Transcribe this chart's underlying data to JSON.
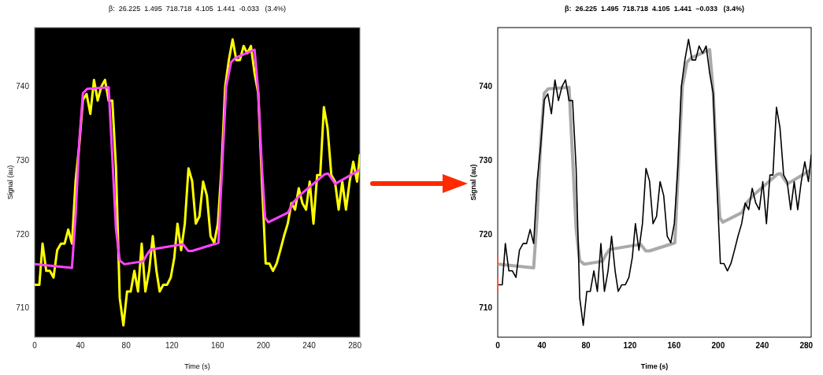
{
  "chart_data": [
    {
      "type": "line",
      "title": "β:  26.225  1.495  718.718  4.105  1.441  -0.033   (3.4%)",
      "xlabel": "Time (s)",
      "ylabel": "Signal (au)",
      "xlim": [
        0,
        284.4
      ],
      "ylim": [
        706,
        748
      ],
      "xticks": [
        0,
        40,
        80,
        120,
        160,
        200,
        240,
        280
      ],
      "yticks": [
        710,
        720,
        730,
        740
      ],
      "grid": false,
      "series": [
        {
          "color": "#ffff00",
          "x": [
            0,
            4.1,
            6.9,
            10.1,
            13.3,
            16.5,
            19.7,
            23,
            26.2,
            29.4,
            32.6,
            35.8,
            39,
            42.2,
            45.4,
            48.7,
            51.9,
            55.1,
            58.3,
            61.5,
            64.7,
            67.9,
            71.1,
            74.4,
            77.6,
            80.8,
            84,
            87.2,
            90.4,
            93.6,
            96.8,
            100.1,
            103.3,
            106.5,
            109.3,
            112.5,
            115.7,
            119,
            122.1,
            124.9,
            128.1,
            131.3,
            134.5,
            137.7,
            140.9,
            144.1,
            147.3,
            150.6,
            153.8,
            157,
            160.2,
            163.4,
            166.6,
            169.8,
            173.1,
            176.3,
            179.5,
            182.7,
            185.9,
            189.1,
            192.3,
            195.5,
            198.7,
            202,
            205.2,
            208.4,
            211.6,
            214.8,
            218,
            221.3,
            224.5,
            227.7,
            230.9,
            234.1,
            237.3,
            240.5,
            243.8,
            247,
            249.7,
            252.9,
            256.1,
            259.4,
            262.6,
            265.8,
            269,
            272.2,
            275.4,
            278.6,
            281.9,
            284.4
          ],
          "values": [
            713.1,
            713.1,
            718.7,
            715,
            715,
            714.1,
            717.8,
            718.7,
            718.7,
            720.6,
            718.7,
            727.2,
            732,
            738.2,
            739,
            736.3,
            740.9,
            738.1,
            740,
            740.9,
            738.1,
            738.1,
            729,
            711.3,
            707.6,
            712.2,
            712.2,
            715,
            712.2,
            718.7,
            712.2,
            715,
            719.7,
            715,
            712.2,
            713.1,
            713.1,
            714.1,
            716.8,
            721.4,
            717.8,
            721.4,
            728.9,
            727.2,
            721.4,
            722.4,
            727.1,
            725.2,
            719.7,
            718.8,
            721.4,
            729,
            740,
            743.6,
            746.4,
            743.6,
            743.6,
            745.5,
            744.5,
            745.5,
            741.8,
            739.1,
            727.2,
            716,
            716,
            715,
            716,
            717.8,
            719.7,
            721.4,
            724.2,
            723.3,
            726.2,
            724.2,
            723.3,
            727.1,
            721.4,
            728,
            728,
            737.2,
            734.4,
            728,
            727.1,
            723.3,
            727.1,
            723.3,
            727.1,
            729.8,
            727.1,
            730.7
          ]
        },
        {
          "color": "#ff44ff",
          "x": [
            0,
            32.6,
            35.8,
            39,
            42.2,
            45.9,
            64.7,
            67.9,
            71.1,
            74.4,
            78.5,
            95,
            98.2,
            101.4,
            129.7,
            134.3,
            137.7,
            160.7,
            163.9,
            167.5,
            171.7,
            175.6,
            192.3,
            195.5,
            198.7,
            201.5,
            204.3,
            221.5,
            226.1,
            233,
            253.6,
            256.6,
            262.8,
            284.4
          ],
          "values": [
            715.9,
            715.4,
            722.5,
            732.5,
            739.1,
            739.7,
            739.9,
            730.4,
            720.7,
            716.4,
            715.9,
            716.3,
            717.2,
            717.9,
            718.6,
            717.7,
            717.7,
            718.8,
            729,
            740,
            743.3,
            743.9,
            745,
            739.3,
            729,
            722.2,
            721.6,
            722.9,
            724.3,
            725.4,
            728.1,
            728.2,
            726.8,
            728.7
          ]
        }
      ]
    },
    {
      "type": "line",
      "title": "β:  26.225  1.495  718.718  4.105  1.441  −0.033   (3.4%)",
      "xlabel": "Time (s)",
      "ylabel": "Signal (au)",
      "xlim": [
        0,
        284.4
      ],
      "ylim": [
        706,
        748
      ],
      "xticks": [
        0,
        40,
        80,
        120,
        160,
        200,
        240,
        280
      ],
      "yticks": [
        710,
        720,
        730,
        740
      ],
      "grid": false,
      "series": [
        {
          "color": "#aaaaaa",
          "x": [
            0,
            32.6,
            35.8,
            39,
            42.2,
            45.9,
            64.7,
            67.9,
            71.1,
            74.4,
            78.5,
            95,
            98.2,
            101.4,
            129.7,
            134.3,
            137.7,
            160.7,
            163.9,
            167.5,
            171.7,
            175.6,
            192.3,
            195.5,
            198.7,
            201.5,
            204.3,
            221.5,
            226.1,
            233,
            253.6,
            256.6,
            262.8,
            284.4
          ],
          "values": [
            715.9,
            715.4,
            722.5,
            732.5,
            739.1,
            739.7,
            739.9,
            730.4,
            720.7,
            716.4,
            715.9,
            716.3,
            717.2,
            717.9,
            718.6,
            717.7,
            717.7,
            718.8,
            729,
            740,
            743.3,
            743.9,
            745,
            739.3,
            729,
            722.2,
            721.6,
            722.9,
            724.3,
            725.4,
            728.1,
            728.2,
            726.8,
            728.7
          ]
        },
        {
          "color": "#000000",
          "x": [
            0,
            4.1,
            6.9,
            10.1,
            13.3,
            16.5,
            19.7,
            23,
            26.2,
            29.4,
            32.6,
            35.8,
            39,
            42.2,
            45.4,
            48.7,
            51.9,
            55.1,
            58.3,
            61.5,
            64.7,
            67.9,
            71.1,
            74.4,
            77.6,
            80.8,
            84,
            87.2,
            90.4,
            93.6,
            96.8,
            100.1,
            103.3,
            106.5,
            109.3,
            112.5,
            115.7,
            119,
            122.1,
            124.9,
            128.1,
            131.3,
            134.5,
            137.7,
            140.9,
            144.1,
            147.3,
            150.6,
            153.8,
            157,
            160.2,
            163.4,
            166.6,
            169.8,
            173.1,
            176.3,
            179.5,
            182.7,
            185.9,
            189.1,
            192.3,
            195.5,
            198.7,
            202,
            205.2,
            208.4,
            211.6,
            214.8,
            218,
            221.3,
            224.5,
            227.7,
            230.9,
            234.1,
            237.3,
            240.5,
            243.8,
            247,
            249.7,
            252.9,
            256.1,
            259.4,
            262.6,
            265.8,
            269,
            272.2,
            275.4,
            278.6,
            281.9,
            284.4
          ],
          "values": [
            713.1,
            713.1,
            718.7,
            715,
            715,
            714.1,
            717.8,
            718.7,
            718.7,
            720.6,
            718.7,
            727.2,
            732,
            738.2,
            739,
            736.3,
            740.9,
            738.1,
            740,
            740.9,
            738.1,
            738.1,
            729,
            711.3,
            707.6,
            712.2,
            712.2,
            715,
            712.2,
            718.7,
            712.2,
            715,
            719.7,
            715,
            712.2,
            713.1,
            713.1,
            714.1,
            716.8,
            721.4,
            717.8,
            721.4,
            728.9,
            727.2,
            721.4,
            722.4,
            727.1,
            725.2,
            719.7,
            718.8,
            721.4,
            729,
            740,
            743.6,
            746.4,
            743.6,
            743.6,
            745.5,
            744.5,
            745.5,
            741.8,
            739.1,
            727.2,
            716,
            716,
            715,
            716,
            717.8,
            719.7,
            721.4,
            724.2,
            723.3,
            726.2,
            724.2,
            723.3,
            727.1,
            721.4,
            728,
            728,
            737.2,
            734.4,
            728,
            727.1,
            723.3,
            727.1,
            723.3,
            727.1,
            729.8,
            727.1,
            730.7
          ]
        }
      ]
    }
  ]
}
